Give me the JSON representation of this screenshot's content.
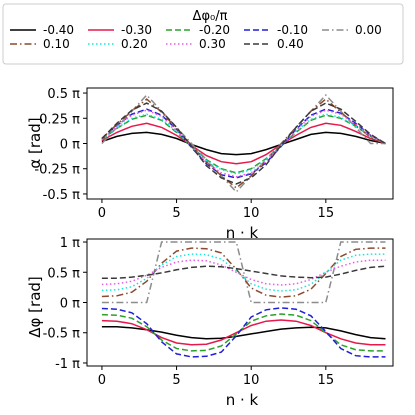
{
  "chart_data": [
    {
      "type": "line",
      "legend": {
        "title": "Δφ₀/π",
        "placement": "top",
        "columns": 5,
        "entries": [
          "-0.40",
          "-0.30",
          "-0.20",
          "-0.10",
          "0.00",
          "0.10",
          "0.20",
          "0.30",
          "0.40"
        ]
      },
      "xlabel": "n · k",
      "ylabel": "α [rad]",
      "xlim": [
        -1,
        19.5
      ],
      "ylim": [
        -0.55,
        0.55
      ],
      "x_ticks": [
        0,
        5,
        10,
        15
      ],
      "x_tick_labels": [
        "0",
        "5",
        "10",
        "15"
      ],
      "y_ticks": [
        -0.5,
        -0.25,
        0,
        0.25,
        0.5
      ],
      "y_tick_labels": [
        "-0.5 π",
        "-0.25 π",
        "0 π",
        "0.25 π",
        "0.5 π"
      ],
      "grid": false,
      "x": [
        0,
        1,
        2,
        3,
        4,
        5,
        6,
        7,
        8,
        9,
        10,
        11,
        12,
        13,
        14,
        15,
        16,
        17,
        18,
        19
      ],
      "series": [
        {
          "name": "-0.40",
          "color": "#000000",
          "dash": "solid",
          "values": [
            0.02,
            0.07,
            0.1,
            0.11,
            0.09,
            0.05,
            -0.01,
            -0.06,
            -0.1,
            -0.11,
            -0.1,
            -0.06,
            -0.01,
            0.04,
            0.09,
            0.11,
            0.1,
            0.07,
            0.03,
            0.0
          ]
        },
        {
          "name": "-0.30",
          "color": "#e6194b",
          "dash": "solid",
          "values": [
            0.03,
            0.11,
            0.17,
            0.2,
            0.16,
            0.08,
            -0.02,
            -0.12,
            -0.18,
            -0.2,
            -0.18,
            -0.11,
            -0.01,
            0.08,
            0.16,
            0.2,
            0.18,
            0.12,
            0.05,
            0.0
          ]
        },
        {
          "name": "-0.20",
          "color": "#2ca02c",
          "dash": "dashed",
          "values": [
            0.04,
            0.15,
            0.24,
            0.28,
            0.23,
            0.11,
            -0.03,
            -0.16,
            -0.25,
            -0.29,
            -0.25,
            -0.15,
            -0.02,
            0.11,
            0.23,
            0.28,
            0.25,
            0.17,
            0.07,
            0.0
          ]
        },
        {
          "name": "-0.10",
          "color": "#1f1fd6",
          "dash": "dashed",
          "values": [
            0.05,
            0.18,
            0.29,
            0.34,
            0.28,
            0.14,
            -0.04,
            -0.2,
            -0.31,
            -0.34,
            -0.3,
            -0.19,
            -0.03,
            0.14,
            0.28,
            0.34,
            0.3,
            0.2,
            0.08,
            0.0
          ]
        },
        {
          "name": "0.00",
          "color": "#8c8c8c",
          "dash": "dashdot",
          "values": [
            0.0,
            0.16,
            0.32,
            0.48,
            0.32,
            0.16,
            0.0,
            -0.16,
            -0.32,
            -0.48,
            -0.32,
            -0.16,
            0.0,
            0.16,
            0.32,
            0.48,
            0.32,
            0.16,
            0.0,
            0.0
          ]
        },
        {
          "name": "0.10",
          "color": "#8c4a2f",
          "dash": "dashdot",
          "values": [
            0.05,
            0.19,
            0.32,
            0.44,
            0.31,
            0.15,
            -0.02,
            -0.18,
            -0.32,
            -0.44,
            -0.32,
            -0.17,
            -0.01,
            0.16,
            0.32,
            0.44,
            0.31,
            0.18,
            0.06,
            0.0
          ]
        },
        {
          "name": "0.20",
          "color": "#17e6d6",
          "dash": "dotted",
          "values": [
            0.04,
            0.15,
            0.25,
            0.29,
            0.24,
            0.12,
            -0.03,
            -0.17,
            -0.26,
            -0.3,
            -0.26,
            -0.16,
            -0.02,
            0.12,
            0.24,
            0.29,
            0.26,
            0.17,
            0.07,
            0.0
          ]
        },
        {
          "name": "0.30",
          "color": "#e65ce6",
          "dash": "dotted",
          "values": [
            0.04,
            0.17,
            0.28,
            0.33,
            0.27,
            0.13,
            -0.03,
            -0.19,
            -0.29,
            -0.33,
            -0.29,
            -0.18,
            -0.02,
            0.13,
            0.27,
            0.33,
            0.29,
            0.19,
            0.08,
            0.0
          ]
        },
        {
          "name": "0.40",
          "color": "#3a3a3a",
          "dash": "dashed",
          "values": [
            0.05,
            0.2,
            0.33,
            0.4,
            0.32,
            0.16,
            -0.03,
            -0.22,
            -0.34,
            -0.4,
            -0.34,
            -0.21,
            -0.02,
            0.16,
            0.32,
            0.4,
            0.34,
            0.22,
            0.09,
            0.0
          ]
        }
      ]
    },
    {
      "type": "line",
      "xlabel": "n · k",
      "ylabel": "Δφ [rad]",
      "xlim": [
        -1,
        19.5
      ],
      "ylim": [
        -1.05,
        1.05
      ],
      "x_ticks": [
        0,
        5,
        10,
        15
      ],
      "x_tick_labels": [
        "0",
        "5",
        "10",
        "15"
      ],
      "y_ticks": [
        -1,
        -0.5,
        0,
        0.5,
        1
      ],
      "y_tick_labels": [
        "-1 π",
        "-0.5 π",
        "0 π",
        "0.5 π",
        "1 π"
      ],
      "grid": false,
      "x": [
        0,
        1,
        2,
        3,
        4,
        5,
        6,
        7,
        8,
        9,
        10,
        11,
        12,
        13,
        14,
        15,
        16,
        17,
        18,
        19
      ],
      "series": [
        {
          "name": "-0.40",
          "color": "#000000",
          "dash": "solid",
          "values": [
            -0.4,
            -0.4,
            -0.42,
            -0.45,
            -0.49,
            -0.54,
            -0.58,
            -0.6,
            -0.59,
            -0.56,
            -0.52,
            -0.48,
            -0.44,
            -0.42,
            -0.41,
            -0.42,
            -0.47,
            -0.53,
            -0.58,
            -0.6
          ]
        },
        {
          "name": "-0.30",
          "color": "#e6194b",
          "dash": "solid",
          "values": [
            -0.3,
            -0.31,
            -0.35,
            -0.45,
            -0.58,
            -0.67,
            -0.7,
            -0.69,
            -0.62,
            -0.5,
            -0.38,
            -0.31,
            -0.29,
            -0.31,
            -0.38,
            -0.5,
            -0.6,
            -0.67,
            -0.7,
            -0.7
          ]
        },
        {
          "name": "-0.20",
          "color": "#2ca02c",
          "dash": "dashed",
          "values": [
            -0.2,
            -0.21,
            -0.26,
            -0.4,
            -0.62,
            -0.76,
            -0.8,
            -0.79,
            -0.72,
            -0.52,
            -0.31,
            -0.22,
            -0.19,
            -0.21,
            -0.3,
            -0.5,
            -0.7,
            -0.78,
            -0.8,
            -0.8
          ]
        },
        {
          "name": "-0.10",
          "color": "#1f1fd6",
          "dash": "dashed",
          "values": [
            -0.1,
            -0.11,
            -0.17,
            -0.35,
            -0.65,
            -0.85,
            -0.9,
            -0.89,
            -0.82,
            -0.55,
            -0.24,
            -0.12,
            -0.09,
            -0.11,
            -0.22,
            -0.48,
            -0.76,
            -0.88,
            -0.9,
            -0.9
          ]
        },
        {
          "name": "0.00",
          "color": "#8c8c8c",
          "dash": "dashdot",
          "values": [
            0.0,
            0.0,
            0.0,
            0.0,
            1.0,
            1.0,
            1.0,
            1.0,
            1.0,
            1.0,
            0.0,
            0.0,
            0.0,
            0.0,
            0.0,
            0.0,
            1.0,
            1.0,
            1.0,
            1.0
          ]
        },
        {
          "name": "0.10",
          "color": "#8c4a2f",
          "dash": "dashdot",
          "values": [
            0.1,
            0.11,
            0.17,
            0.35,
            0.65,
            0.85,
            0.9,
            0.89,
            0.82,
            0.55,
            0.24,
            0.12,
            0.09,
            0.11,
            0.22,
            0.48,
            0.76,
            0.88,
            0.9,
            0.9
          ]
        },
        {
          "name": "0.20",
          "color": "#17e6d6",
          "dash": "dotted",
          "values": [
            0.2,
            0.21,
            0.26,
            0.4,
            0.62,
            0.76,
            0.8,
            0.79,
            0.72,
            0.52,
            0.31,
            0.22,
            0.19,
            0.21,
            0.3,
            0.5,
            0.7,
            0.78,
            0.8,
            0.8
          ]
        },
        {
          "name": "0.30",
          "color": "#e65ce6",
          "dash": "dotted",
          "values": [
            0.3,
            0.31,
            0.35,
            0.45,
            0.58,
            0.67,
            0.7,
            0.69,
            0.62,
            0.5,
            0.38,
            0.31,
            0.29,
            0.31,
            0.38,
            0.5,
            0.6,
            0.67,
            0.7,
            0.7
          ]
        },
        {
          "name": "0.40",
          "color": "#3a3a3a",
          "dash": "dashed",
          "values": [
            0.4,
            0.4,
            0.42,
            0.45,
            0.49,
            0.54,
            0.58,
            0.6,
            0.59,
            0.56,
            0.52,
            0.48,
            0.44,
            0.42,
            0.41,
            0.42,
            0.47,
            0.53,
            0.58,
            0.6
          ]
        }
      ]
    }
  ]
}
